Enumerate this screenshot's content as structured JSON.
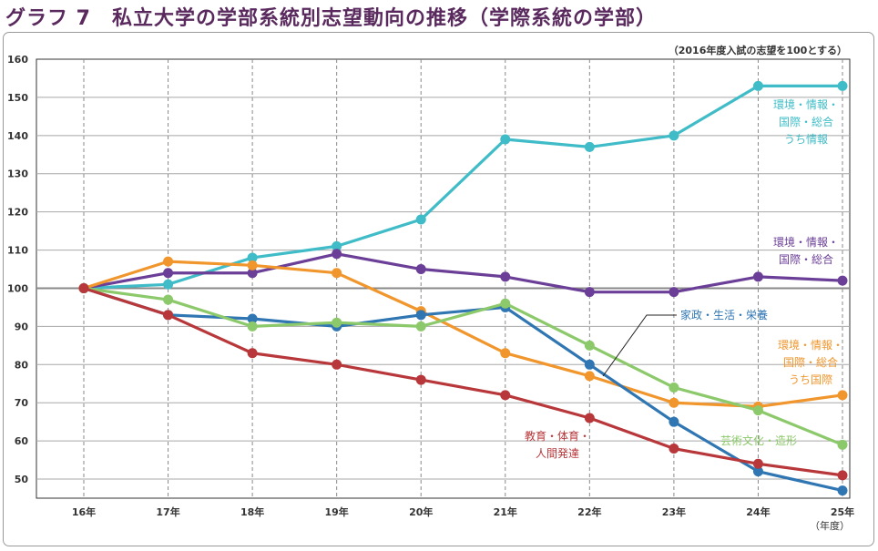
{
  "title": "グラフ 7　私立大学の学部系統別志望動向の推移（学際系統の学部）",
  "chart_data": {
    "type": "line",
    "note": "（2016年度入試の志望を100とする）",
    "x_unit": "（年度）",
    "categories": [
      "16年",
      "17年",
      "18年",
      "19年",
      "20年",
      "21年",
      "22年",
      "23年",
      "24年",
      "25年"
    ],
    "ylim": [
      45,
      160
    ],
    "yticks": [
      50,
      60,
      70,
      80,
      90,
      100,
      110,
      120,
      130,
      140,
      150,
      160
    ],
    "grid": true,
    "series": [
      {
        "name": "環境・情報・国際・総合うち情報",
        "lines": [
          "環境・情報・",
          "国際・総合",
          "うち情報"
        ],
        "color": "#3fbcc7",
        "values": [
          100,
          101,
          108,
          111,
          118,
          139,
          137,
          140,
          153,
          153
        ]
      },
      {
        "name": "環境・情報・国際・総合",
        "lines": [
          "環境・情報・",
          "国際・総合"
        ],
        "color": "#6b3f97",
        "values": [
          100,
          104,
          104,
          109,
          105,
          103,
          99,
          99,
          103,
          102
        ]
      },
      {
        "name": "環境・情報・国際・総合うち国際",
        "lines": [
          "環境・情報・",
          "国際・総合",
          "うち国際"
        ],
        "color": "#f0962c",
        "values": [
          100,
          107,
          106,
          104,
          94,
          83,
          77,
          70,
          69,
          72
        ]
      },
      {
        "name": "家政・生活・栄養",
        "lines": [
          "家政・生活・栄養"
        ],
        "color": "#2f76b3",
        "values": [
          100,
          93,
          92,
          90,
          93,
          95,
          80,
          65,
          52,
          47
        ]
      },
      {
        "name": "芸術文化・造形",
        "lines": [
          "芸術文化・造形"
        ],
        "color": "#8cc96a",
        "values": [
          100,
          97,
          90,
          91,
          90,
          96,
          85,
          74,
          68,
          59
        ]
      },
      {
        "name": "教育・体育・人間発達",
        "lines": [
          "教育・体育・",
          "人間発達"
        ],
        "color": "#b8373a",
        "values": [
          100,
          93,
          83,
          80,
          76,
          72,
          66,
          58,
          54,
          51
        ]
      }
    ]
  }
}
